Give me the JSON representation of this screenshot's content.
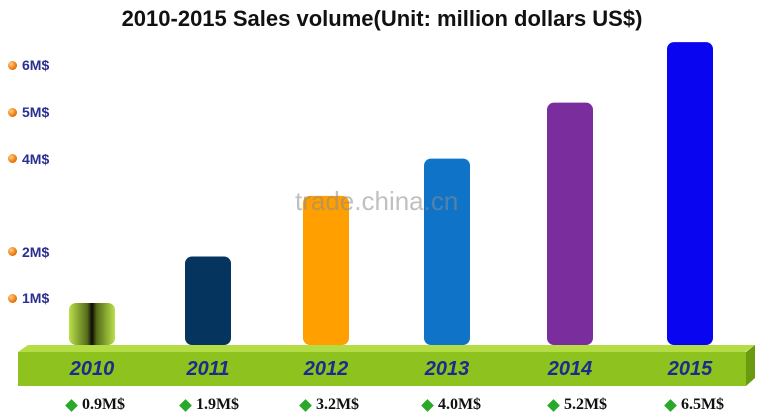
{
  "chart_data": {
    "type": "bar",
    "title": "2010-2015 Sales volume(Unit: million dollars US$)",
    "categories": [
      "2010",
      "2011",
      "2012",
      "2013",
      "2014",
      "2015"
    ],
    "values": [
      0.9,
      1.9,
      3.2,
      4.0,
      5.2,
      6.5
    ],
    "value_labels": [
      "0.9M$",
      "1.9M$",
      "3.2M$",
      "4.0M$",
      "5.2M$",
      "6.5M$"
    ],
    "y_ticks": [
      1,
      2,
      4,
      5,
      6
    ],
    "y_tick_labels": [
      "1M$",
      "2M$",
      "4M$",
      "5M$",
      "6M$"
    ],
    "ylim": [
      0,
      6.7
    ],
    "xlabel": "",
    "ylabel": "",
    "grid": false,
    "bar_colors": [
      "#3a3a10",
      "#05345f",
      "#ff9f00",
      "#0f74c8",
      "#7a2e9e",
      "#0a05f0"
    ],
    "base_color": "#8dc21f"
  },
  "watermark": "trade.china.cn"
}
